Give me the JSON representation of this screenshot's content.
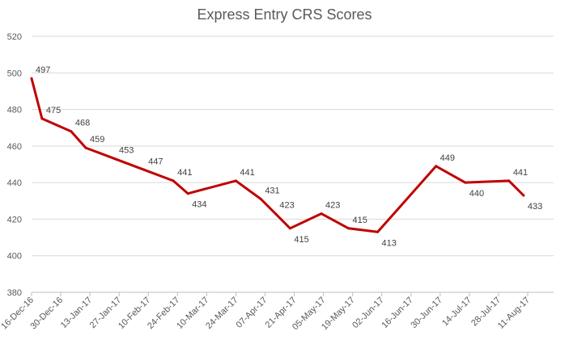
{
  "chart_data": {
    "type": "line",
    "title": "Express Entry CRS Scores",
    "xlabel": "",
    "ylabel": "",
    "ylim": [
      380,
      520
    ],
    "yticks": [
      380,
      400,
      420,
      440,
      460,
      480,
      500,
      520
    ],
    "xticks": [
      "16-Dec-16",
      "30-Dec-16",
      "13-Jan-17",
      "27-Jan-17",
      "10-Feb-17",
      "24-Feb-17",
      "10-Mar-17",
      "24-Mar-17",
      "07-Apr-17",
      "21-Apr-17",
      "05-May-17",
      "19-May-17",
      "02-Jun-17",
      "16-Jun-17",
      "30-Jun-17",
      "14-Jul-17",
      "28-Jul-17",
      "11-Aug-17"
    ],
    "grid": true,
    "line_color": "#C00000",
    "series": [
      {
        "points": [
          {
            "x": "2016-12-16",
            "y": 497
          },
          {
            "x": "2016-12-21",
            "y": 475
          },
          {
            "x": "2017-01-04",
            "y": 468
          },
          {
            "x": "2017-01-11",
            "y": 459
          },
          {
            "x": "2017-01-25",
            "y": 453
          },
          {
            "x": "2017-02-08",
            "y": 447
          },
          {
            "x": "2017-02-22",
            "y": 441
          },
          {
            "x": "2017-03-01",
            "y": 434
          },
          {
            "x": "2017-03-24",
            "y": 441
          },
          {
            "x": "2017-04-05",
            "y": 431
          },
          {
            "x": "2017-04-12",
            "y": 423
          },
          {
            "x": "2017-04-19",
            "y": 415
          },
          {
            "x": "2017-05-04",
            "y": 423
          },
          {
            "x": "2017-05-17",
            "y": 415
          },
          {
            "x": "2017-05-31",
            "y": 413
          },
          {
            "x": "2017-06-28",
            "y": 449
          },
          {
            "x": "2017-07-12",
            "y": 440
          },
          {
            "x": "2017-08-02",
            "y": 441
          },
          {
            "x": "2017-08-09",
            "y": 433
          }
        ]
      }
    ]
  }
}
